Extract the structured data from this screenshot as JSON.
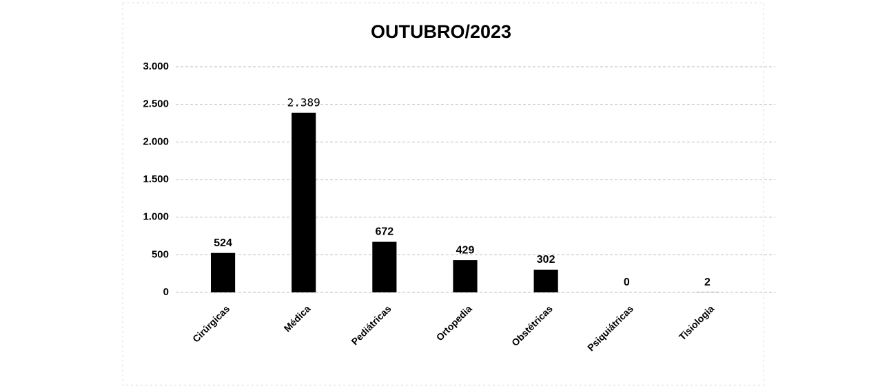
{
  "chart_data": {
    "type": "bar",
    "title": "OUTUBRO/2023",
    "categories": [
      "Cirúrgicas",
      "Médica",
      "Pediátricas",
      "Ortopedia",
      "Obstétricas",
      "Psiquiátricas",
      "Tisiologia"
    ],
    "values": [
      524,
      2389,
      672,
      429,
      302,
      0,
      2
    ],
    "value_labels": [
      "524",
      "2.389",
      "672",
      "429",
      "302",
      "0",
      "2"
    ],
    "color": "#000000",
    "ylim": [
      0,
      3000
    ],
    "yticks": [
      0,
      500,
      {
        "value": 1000,
        "label": "1.000"
      },
      {
        "value": 1500,
        "label": "1.500"
      },
      {
        "value": 2000,
        "label": "2.000"
      },
      {
        "value": 2500,
        "label": "2.500"
      },
      {
        "value": 3000,
        "label": "3.000"
      }
    ],
    "grid": true
  }
}
